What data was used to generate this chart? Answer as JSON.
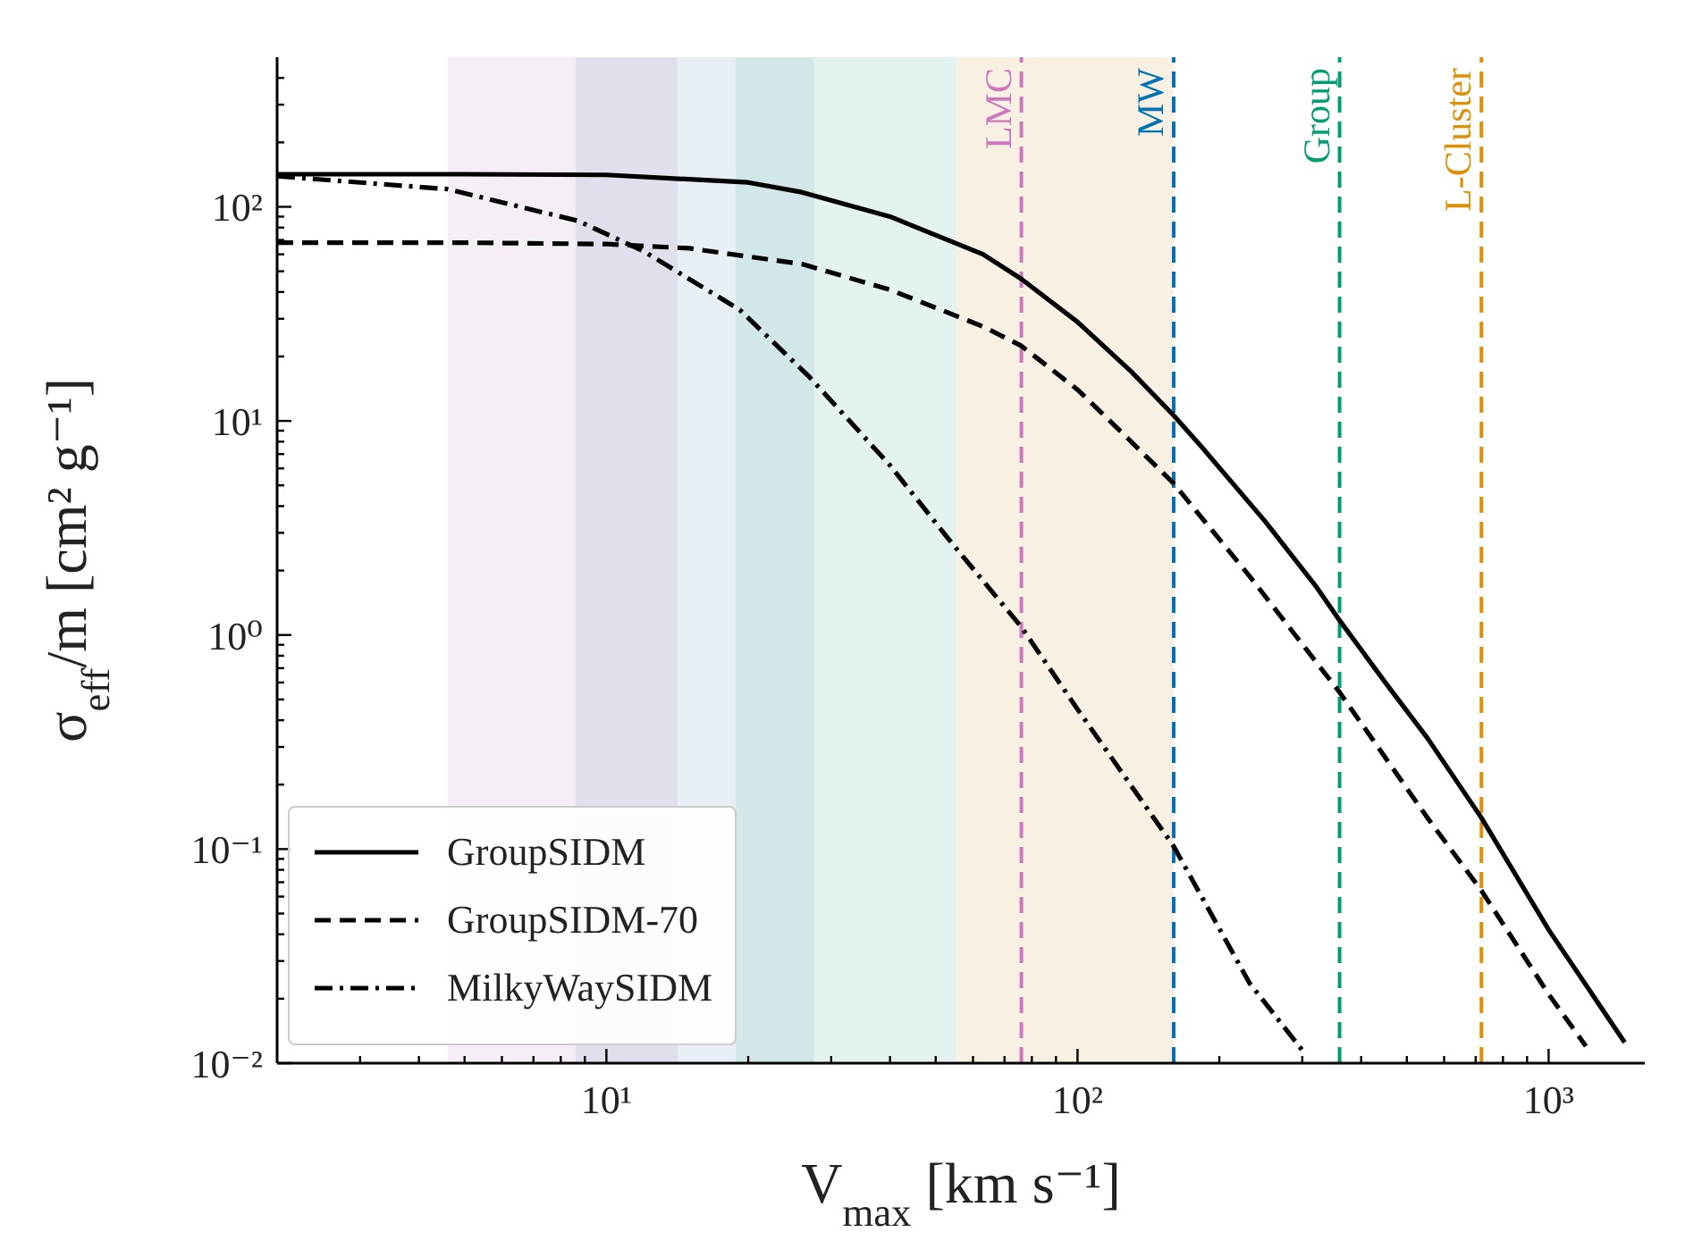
{
  "chart_data": {
    "type": "line",
    "xlabel": "V$_{max}$ [km s⁻¹]",
    "ylabel": "σ$_{eff}$/m [cm² g⁻¹]",
    "log": "xy",
    "grid": false,
    "legend": "bottom left",
    "marker": "none",
    "xlim": [
      2,
      1600
    ],
    "ylim": [
      0.01,
      500
    ],
    "xticks": [
      {
        "value": 3,
        "label": null
      },
      {
        "value": 4,
        "label": null
      },
      {
        "value": 5,
        "label": null
      },
      {
        "value": 6,
        "label": null
      },
      {
        "value": 7,
        "label": null
      },
      {
        "value": 8,
        "label": null
      },
      {
        "value": 9,
        "label": null
      },
      {
        "value": 10,
        "label": "10¹"
      },
      {
        "value": 20,
        "label": null
      },
      {
        "value": 30,
        "label": null
      },
      {
        "value": 40,
        "label": null
      },
      {
        "value": 50,
        "label": null
      },
      {
        "value": 60,
        "label": null
      },
      {
        "value": 70,
        "label": null
      },
      {
        "value": 80,
        "label": null
      },
      {
        "value": 90,
        "label": null
      },
      {
        "value": 100,
        "label": "10²"
      },
      {
        "value": 200,
        "label": null
      },
      {
        "value": 300,
        "label": null
      },
      {
        "value": 400,
        "label": null
      },
      {
        "value": 500,
        "label": null
      },
      {
        "value": 600,
        "label": null
      },
      {
        "value": 700,
        "label": null
      },
      {
        "value": 800,
        "label": null
      },
      {
        "value": 900,
        "label": null
      },
      {
        "value": 1000,
        "label": "10³"
      }
    ],
    "yticks": [
      {
        "value": 0.01,
        "label": "10⁻²"
      },
      {
        "value": 0.02,
        "label": null
      },
      {
        "value": 0.03,
        "label": null
      },
      {
        "value": 0.04,
        "label": null
      },
      {
        "value": 0.05,
        "label": null
      },
      {
        "value": 0.06,
        "label": null
      },
      {
        "value": 0.07,
        "label": null
      },
      {
        "value": 0.08,
        "label": null
      },
      {
        "value": 0.09,
        "label": null
      },
      {
        "value": 0.1,
        "label": "10⁻¹"
      },
      {
        "value": 0.2,
        "label": null
      },
      {
        "value": 0.3,
        "label": null
      },
      {
        "value": 0.4,
        "label": null
      },
      {
        "value": 0.5,
        "label": null
      },
      {
        "value": 0.6,
        "label": null
      },
      {
        "value": 0.7,
        "label": null
      },
      {
        "value": 0.8,
        "label": null
      },
      {
        "value": 0.9,
        "label": null
      },
      {
        "value": 1,
        "label": "10⁰"
      },
      {
        "value": 2,
        "label": null
      },
      {
        "value": 3,
        "label": null
      },
      {
        "value": 4,
        "label": null
      },
      {
        "value": 5,
        "label": null
      },
      {
        "value": 6,
        "label": null
      },
      {
        "value": 7,
        "label": null
      },
      {
        "value": 8,
        "label": null
      },
      {
        "value": 9,
        "label": null
      },
      {
        "value": 10,
        "label": "10¹"
      },
      {
        "value": 20,
        "label": null
      },
      {
        "value": 30,
        "label": null
      },
      {
        "value": 40,
        "label": null
      },
      {
        "value": 50,
        "label": null
      },
      {
        "value": 60,
        "label": null
      },
      {
        "value": 70,
        "label": null
      },
      {
        "value": 80,
        "label": null
      },
      {
        "value": 90,
        "label": null
      },
      {
        "value": 100,
        "label": "10²"
      },
      {
        "value": 200,
        "label": null
      },
      {
        "value": 300,
        "label": null
      },
      {
        "value": 400,
        "label": null
      }
    ],
    "series": [
      {
        "name": "GroupSIDM",
        "color": "#000000",
        "line_style": "solid",
        "x": [
          2,
          5,
          10,
          20,
          26,
          40,
          63,
          76,
          100,
          130,
          160,
          184,
          250,
          320,
          360,
          450,
          553,
          720,
          1000,
          1450
        ],
        "values": [
          142,
          142,
          141,
          130,
          117,
          90,
          60,
          46,
          29,
          17,
          10.6,
          7.5,
          3.4,
          1.7,
          1.17,
          0.6,
          0.33,
          0.14,
          0.042,
          0.0125
        ]
      },
      {
        "name": "GroupSIDM-70",
        "color": "#000000",
        "line_style": "dashed",
        "x": [
          2,
          5,
          10,
          15,
          26,
          40,
          63,
          76,
          100,
          130,
          160,
          232,
          360,
          553,
          720,
          1000,
          1200
        ],
        "values": [
          68,
          68,
          67,
          64,
          54,
          41,
          27.6,
          22.4,
          14,
          8,
          5.1,
          1.88,
          0.54,
          0.14,
          0.064,
          0.021,
          0.012
        ]
      },
      {
        "name": "MilkyWaySIDM",
        "color": "#000000",
        "line_style": "dashdot",
        "x": [
          2,
          4.6,
          8.7,
          12,
          19.2,
          27,
          40,
          54,
          76,
          100,
          160,
          232,
          300
        ],
        "values": [
          139,
          121,
          86,
          62,
          33,
          16,
          6.2,
          2.7,
          1.09,
          0.45,
          0.103,
          0.0236,
          0.0115
        ]
      }
    ],
    "bands": [
      {
        "axis": "x",
        "from": 4.6,
        "to": 8.6,
        "color": "#f5eef6"
      },
      {
        "axis": "x",
        "from": 8.6,
        "to": 14.2,
        "color": "#e0dfeb"
      },
      {
        "axis": "x",
        "from": 14.2,
        "to": 18.8,
        "color": "#e8f0f6"
      },
      {
        "axis": "x",
        "from": 18.8,
        "to": 27.7,
        "color": "#d3e6e8"
      },
      {
        "axis": "x",
        "from": 27.7,
        "to": 55.4,
        "color": "#e5f3f0"
      },
      {
        "axis": "x",
        "from": 55.4,
        "to": 160,
        "color": "#f8f0e3"
      }
    ],
    "ref_lines": [
      {
        "axis": "x",
        "value": 76,
        "label": "LMC",
        "color": "#cc78bc",
        "line_style": "dashed"
      },
      {
        "axis": "x",
        "value": 160,
        "label": "MW",
        "color": "#0173b2",
        "line_style": "dashed"
      },
      {
        "axis": "x",
        "value": 360,
        "label": "Group",
        "color": "#029e73",
        "line_style": "dashed"
      },
      {
        "axis": "x",
        "value": 720,
        "label": "L-Cluster",
        "color": "#de8f05",
        "line_style": "dashed"
      }
    ]
  }
}
